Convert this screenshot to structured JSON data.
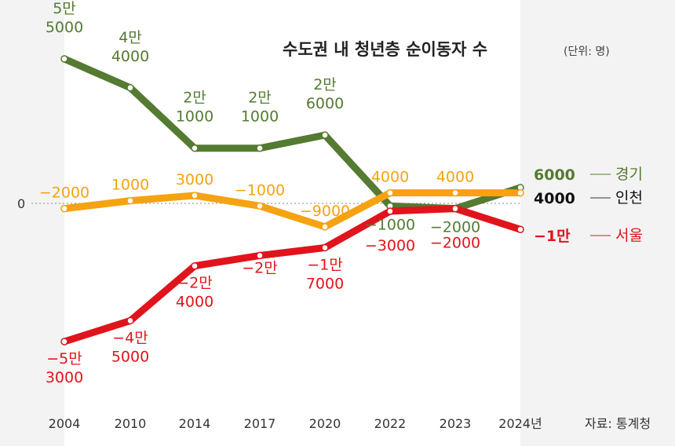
{
  "chart_data": {
    "type": "line",
    "title": "수도권 내 청년층 순이동자 수",
    "unit": "(단위: 명)",
    "source": "자료: 통계청",
    "categories": [
      "2004",
      "2010",
      "2014",
      "2017",
      "2020",
      "2022",
      "2023",
      "2024년"
    ],
    "zero_label": "0",
    "series": [
      {
        "name": "경기",
        "color": "#557a32",
        "values": [
          55000,
          44000,
          21000,
          21000,
          26000,
          -1000,
          -2000,
          6000
        ],
        "point_labels": [
          "5만\n5000",
          "4만\n4000",
          "2만\n1000",
          "2만\n1000",
          "2만\n6000",
          "−1000",
          "−2000",
          "6000"
        ],
        "end_label": "6000",
        "legend": "경기"
      },
      {
        "name": "인천",
        "color": "#f5a312",
        "values": [
          -2000,
          1000,
          3000,
          -1000,
          -9000,
          4000,
          4000,
          4000
        ],
        "point_labels": [
          "−2000",
          "1000",
          "3000",
          "−1000",
          "−9000",
          "4000",
          "4000",
          "4000"
        ],
        "end_label": "4000",
        "legend": "인천"
      },
      {
        "name": "서울",
        "color": "#e0141c",
        "values": [
          -53000,
          -45000,
          -24000,
          -20000,
          -17000,
          -3000,
          -2000,
          -10000
        ],
        "point_labels": [
          "−5만\n3000",
          "−4만\n5000",
          "−2만\n4000",
          "−2만",
          "−1만\n7000",
          "−3000",
          "−2000",
          "−1만"
        ],
        "end_label": "−1만",
        "legend": "서울"
      }
    ],
    "ylim": [
      -58000,
      63000
    ],
    "grid": false
  }
}
